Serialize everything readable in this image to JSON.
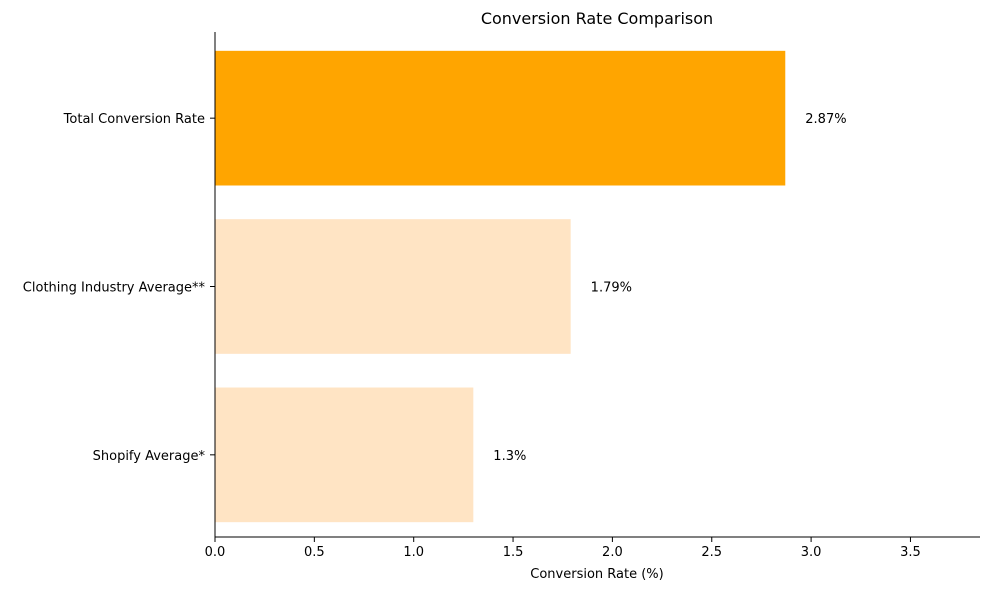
{
  "chart_data": {
    "type": "bar",
    "orientation": "horizontal",
    "title": "Conversion Rate Comparison",
    "xlabel": "Conversion Rate (%)",
    "ylabel": "",
    "xlim": [
      0,
      3.85
    ],
    "xticks": [
      "0.0",
      "0.5",
      "1.0",
      "1.5",
      "2.0",
      "2.5",
      "3.0",
      "3.5"
    ],
    "categories": [
      "Shopify Average*",
      "Clothing Industry Average**",
      "Total Conversion Rate"
    ],
    "values": [
      1.3,
      1.79,
      2.87
    ],
    "value_labels": [
      "1.3%",
      "1.79%",
      "2.87%"
    ],
    "colors": [
      "#FFE4C4",
      "#FFE4C4",
      "#FFA500"
    ],
    "grid": false,
    "spines": "left and bottom only"
  }
}
